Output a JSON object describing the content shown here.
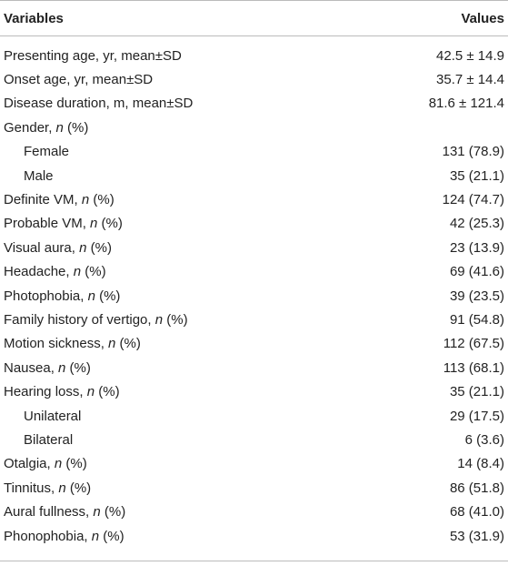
{
  "table": {
    "header": [
      "Variables",
      "Values"
    ],
    "rows": [
      {
        "label": [
          "Presenting age, yr, mean±SD"
        ],
        "value": "42.5 ± 14.9"
      },
      {
        "label": [
          "Onset age, yr, mean±SD"
        ],
        "value": "35.7 ± 14.4"
      },
      {
        "label": [
          "Disease duration, m, mean±SD"
        ],
        "value": "81.6 ± 121.4"
      },
      {
        "label": [
          "Gender, ",
          "n",
          " (%)"
        ],
        "value": ""
      },
      {
        "label": [
          "Female"
        ],
        "value": "131 (78.9)",
        "indent": true
      },
      {
        "label": [
          "Male"
        ],
        "value": "35 (21.1)",
        "indent": true
      },
      {
        "label": [
          "Definite VM, ",
          "n",
          " (%)"
        ],
        "value": "124 (74.7)"
      },
      {
        "label": [
          "Probable VM, ",
          "n",
          " (%)"
        ],
        "value": "42 (25.3)"
      },
      {
        "label": [
          "Visual aura, ",
          "n",
          " (%)"
        ],
        "value": "23 (13.9)"
      },
      {
        "label": [
          "Headache, ",
          "n",
          " (%)"
        ],
        "value": "69 (41.6)"
      },
      {
        "label": [
          "Photophobia, ",
          "n",
          " (%)"
        ],
        "value": "39 (23.5)"
      },
      {
        "label": [
          "Family history of vertigo, ",
          "n",
          " (%)"
        ],
        "value": "91 (54.8)"
      },
      {
        "label": [
          "Motion sickness, ",
          "n",
          " (%)"
        ],
        "value": "112 (67.5)"
      },
      {
        "label": [
          "Nausea, ",
          "n",
          " (%)"
        ],
        "value": "113 (68.1)"
      },
      {
        "label": [
          "Hearing loss, ",
          "n",
          " (%)"
        ],
        "value": "35 (21.1)"
      },
      {
        "label": [
          "Unilateral"
        ],
        "value": "29 (17.5)",
        "indent": true
      },
      {
        "label": [
          "Bilateral"
        ],
        "value": "6 (3.6)",
        "indent": true
      },
      {
        "label": [
          "Otalgia, ",
          "n",
          " (%)"
        ],
        "value": "14 (8.4)"
      },
      {
        "label": [
          "Tinnitus, ",
          "n",
          " (%)"
        ],
        "value": "86 (51.8)"
      },
      {
        "label": [
          "Aural fullness, ",
          "n",
          " (%)"
        ],
        "value": "68 (41.0)"
      },
      {
        "label": [
          "Phonophobia, ",
          "n",
          " (%)"
        ],
        "value": "53 (31.9)"
      }
    ]
  }
}
